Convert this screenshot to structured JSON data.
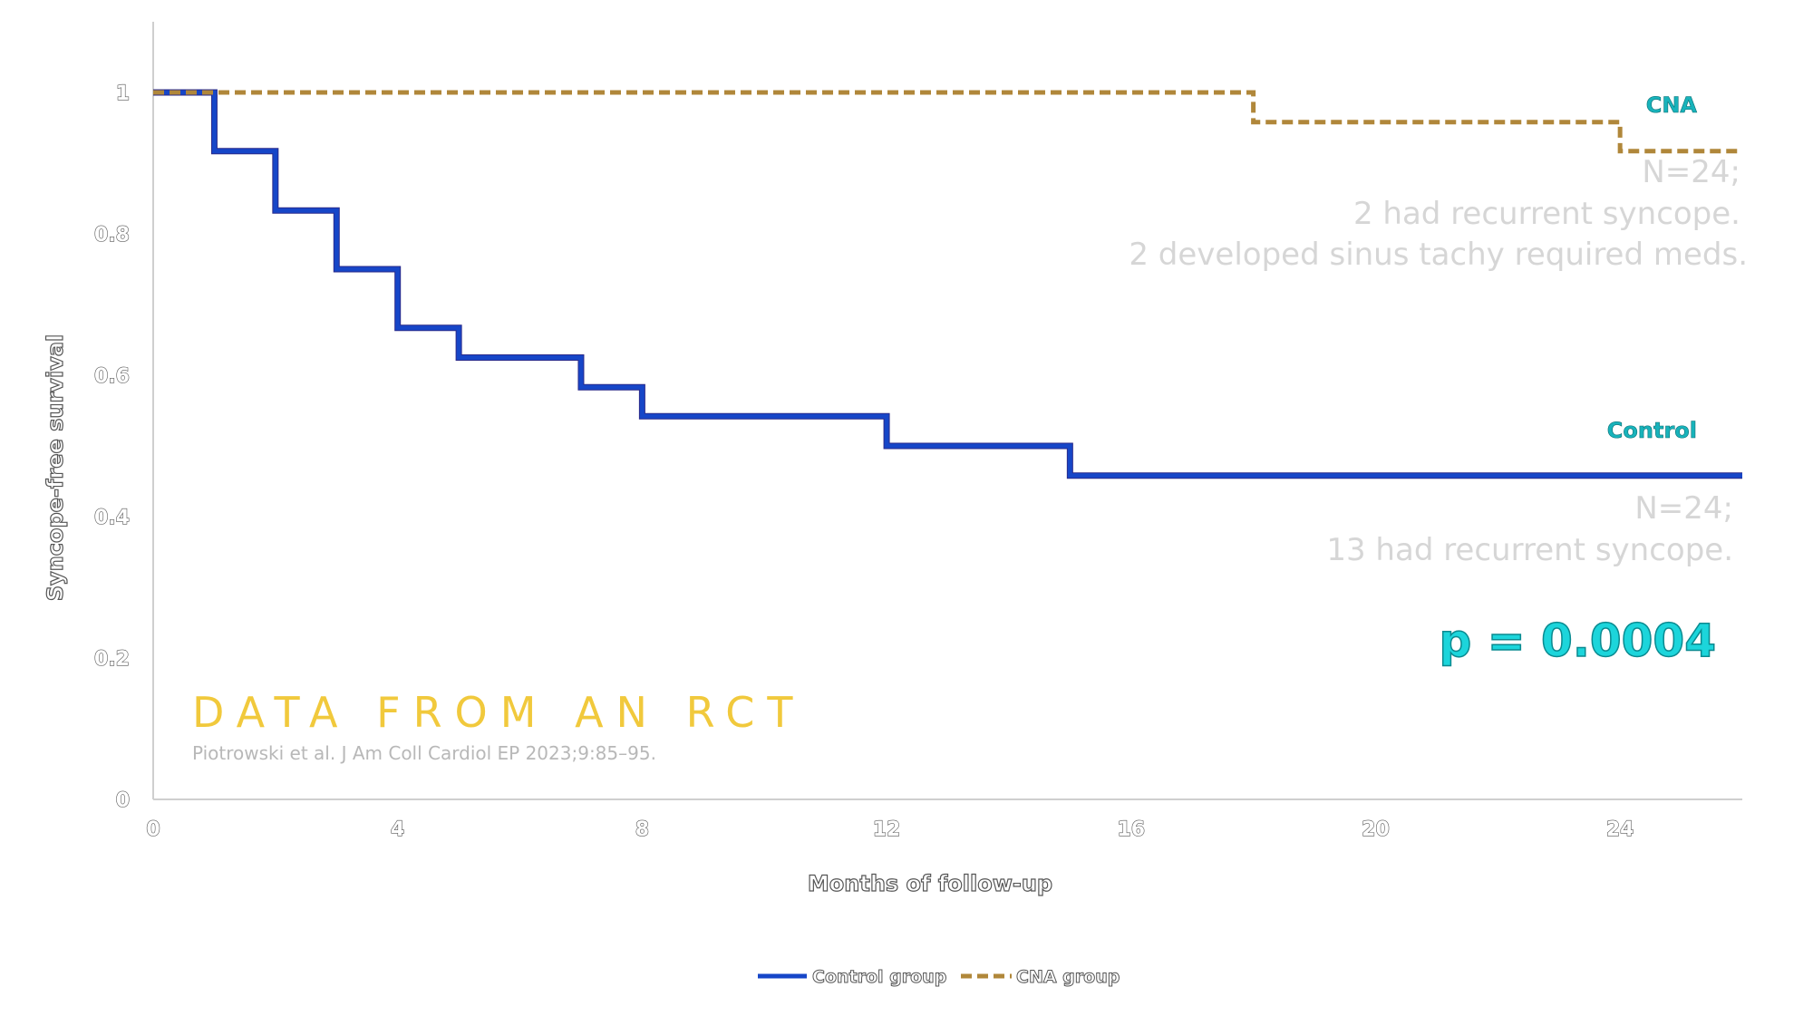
{
  "chart_data": {
    "type": "line",
    "step": true,
    "xlabel": "Months of follow-up",
    "ylabel": "Syncope-free survival",
    "xlim": [
      0,
      26
    ],
    "ylim": [
      0,
      1.1
    ],
    "xticks": [
      0,
      4,
      8,
      12,
      16,
      20,
      24
    ],
    "yticks": [
      0,
      0.2,
      0.4,
      0.6,
      0.8,
      1
    ],
    "ytick_labels": [
      "0",
      "0.2",
      "0.4",
      "0.6",
      "0.8",
      "1"
    ],
    "legend_position": "bottom",
    "grid": false,
    "series": [
      {
        "name": "Control group",
        "label": "Control",
        "color": "#1646c8",
        "style": "solid",
        "x": [
          0,
          1,
          2,
          3,
          4,
          5,
          7,
          8,
          12,
          15,
          26
        ],
        "y": [
          1.0,
          0.917,
          0.833,
          0.75,
          0.667,
          0.625,
          0.583,
          0.542,
          0.5,
          0.458,
          0.458
        ]
      },
      {
        "name": "CNA group",
        "label": "CNA",
        "color": "#b0873a",
        "style": "dashed",
        "x": [
          0,
          18,
          24,
          26
        ],
        "y": [
          1.0,
          0.958,
          0.917,
          0.917
        ]
      }
    ],
    "annotations": {
      "cna_note": [
        "N=24;",
        "2 had recurrent syncope.",
        "2 developed sinus tachy required meds."
      ],
      "control_note": [
        "N=24;",
        "13 had recurrent syncope."
      ],
      "p_value": "p = 0.0004",
      "banner": "DATA FROM AN RCT",
      "citation": "Piotrowski et al. J Am Coll Cardiol EP 2023;9:85–95."
    }
  }
}
